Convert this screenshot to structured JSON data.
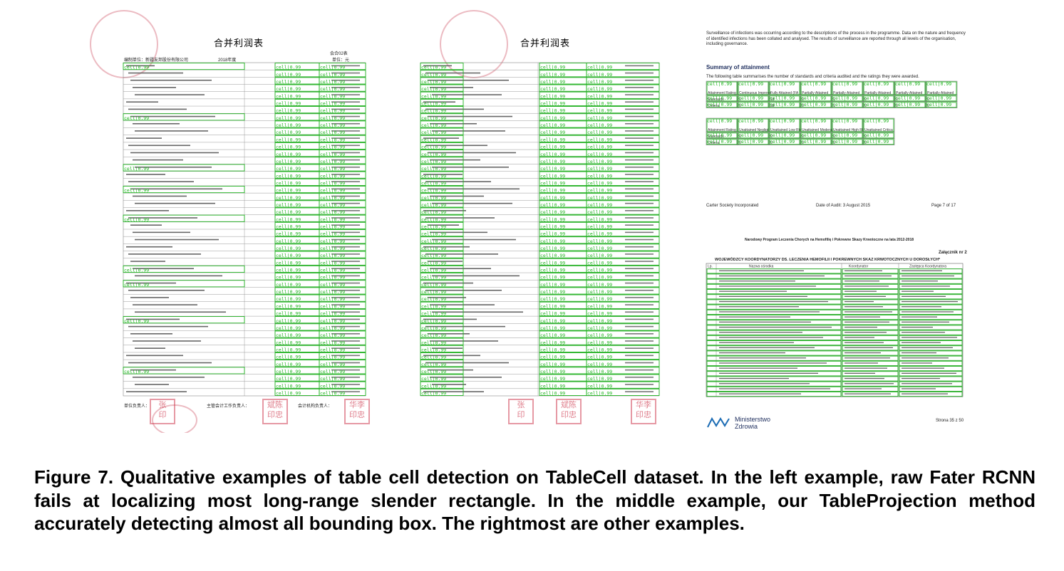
{
  "figure": {
    "left_doc": {
      "title": "合并利润表",
      "note": "会合02表",
      "unit": "单位：元",
      "company": "编制单位：新疆友邦股份有限公司",
      "period": "2018年度",
      "signature": [
        "单位负责人：",
        "主管会计工作负责人：",
        "会计机构负责人："
      ]
    },
    "mid_doc": {
      "title": "合并利润表"
    },
    "detections_label": "cell|0.99",
    "right_doc": {
      "intro": "Surveillance of infections was occurring according to the descriptions of the process in the programme. Data on the nature and frequency of identified infections has been collated and analysed. The results of surveillance are reported through all levels of the organisation, including governance.",
      "heading": "Summary of attainment",
      "table_note": "The following table summarises the number of standards and criteria audited and the ratings they were awarded.",
      "table1_headers": [
        "Attainment Rating",
        "Continuous Improvement (CI)",
        "Fully Attained (FA)",
        "Partially Attained Negligible Risk (PA Negligible)",
        "Partially Attained Low Risk (PA Low)",
        "Partially Attained Moderate Risk (PA Moderate)",
        "Partially Attained High Risk (PA High)",
        "Partially Attained Critical Risk (PA Critical)"
      ],
      "table1_rows": [
        [
          "Standards",
          "0",
          "18",
          "0",
          "1",
          "0",
          "0",
          "0"
        ],
        [
          "Criteria",
          "0",
          "38",
          "0",
          "1",
          "0",
          "0",
          "0"
        ]
      ],
      "table2_headers": [
        "Attainment Rating",
        "Unattained Negligible Risk (UA Negligible)",
        "Unattained Low Risk (UA Low)",
        "Unattained Moderate Risk (UA Moderate)",
        "Unattained High Risk (UA High)",
        "Unattained Critical Risk (UA Critical)"
      ],
      "table2_rows": [
        [
          "Standards",
          "0",
          "0",
          "0",
          "0",
          "0"
        ],
        [
          "Criteria",
          "0",
          "0",
          "0",
          "0",
          "0"
        ]
      ],
      "footer_left": "Carter Society Incorporated",
      "footer_mid": "Date of Audit: 3 August 2015",
      "footer_right": "Page 7 of 17",
      "program": "Narodowy Program Leczenia Chorych na Hemofilię i Pokrewne Skazy Krwotoczne na lata 2012-2018",
      "annex": "Załącznik nr 2",
      "table3_title": "WOJEWÓDZCY KOORDYNATORZY DS. LECZENIA HEMOFILII I POKREWNYCH SKAZ KRWOTOCZNYCH U DOROSŁYCH*",
      "table3_headers": [
        "Lp.",
        "Nazwa ośrodka",
        "Koordynator",
        "Zastępca Koordynatora"
      ],
      "ministry": [
        "Ministerstwo",
        "Zdrowia"
      ],
      "page_label": "Strona 35 z 50"
    },
    "caption": "Figure 7. Qualitative examples of table cell detection on TableCell dataset. In the left example, raw Fater RCNN fails at localizing most long-range slender rectangle. In the middle example, our TableProjection method accurately detecting almost all bounding box. The rightmost are other examples."
  }
}
